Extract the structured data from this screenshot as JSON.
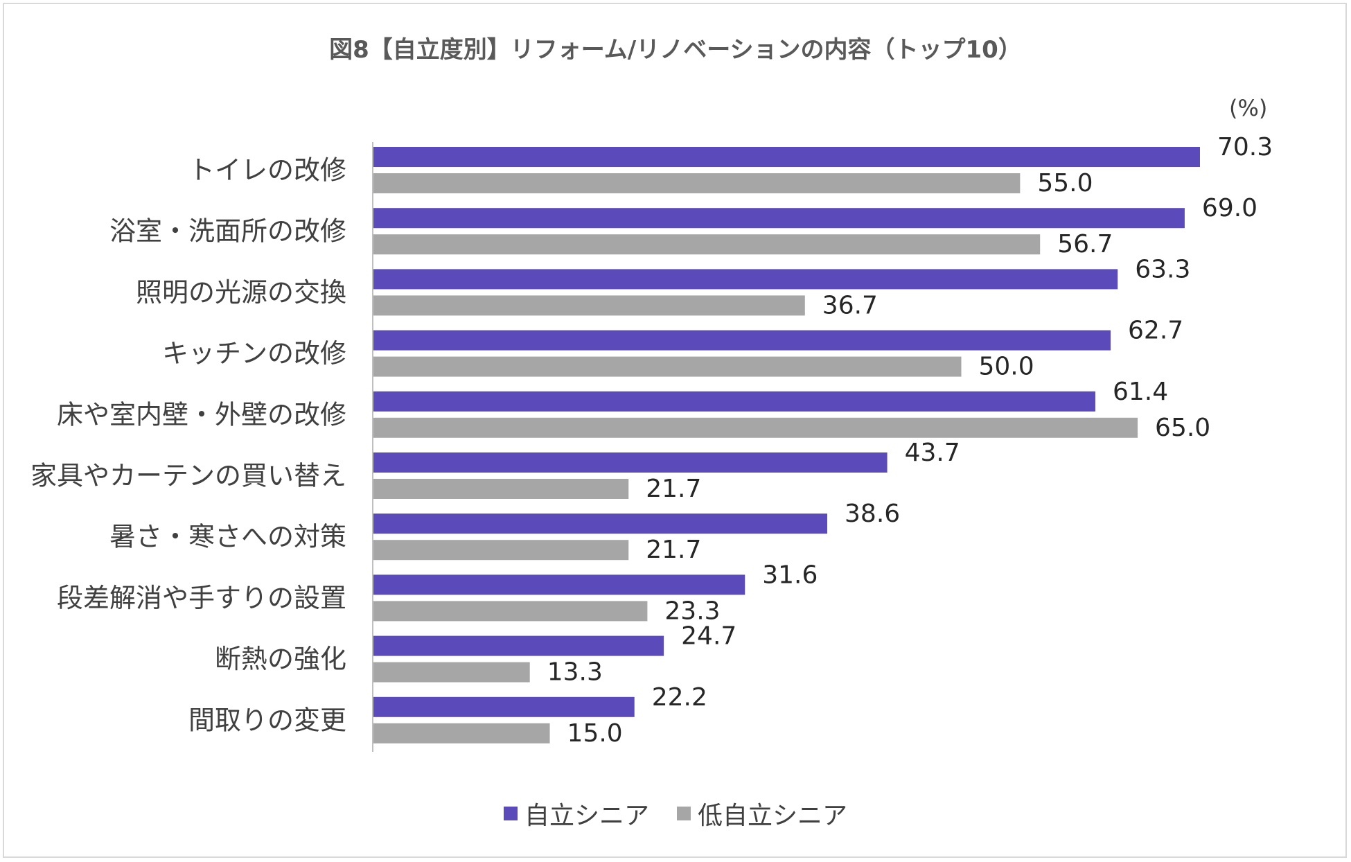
{
  "chart_data": {
    "type": "bar",
    "orientation": "horizontal",
    "title": "図8【自立度別】リフォーム/リノベーションの内容（トップ10）",
    "unit_label": "(%)",
    "categories": [
      "トイレの改修",
      "浴室・洗面所の改修",
      "照明の光源の交換",
      "キッチンの改修",
      "床や室内壁・外壁の改修",
      "家具やカーテンの買い替え",
      "暑さ・寒さへの対策",
      "段差解消や手すりの設置",
      "断熱の強化",
      "間取りの変更"
    ],
    "series": [
      {
        "name": "自立シニア",
        "color": "#5b4bba",
        "values": [
          70.3,
          69.0,
          63.3,
          62.7,
          61.4,
          43.7,
          38.6,
          31.6,
          24.7,
          22.2
        ],
        "labels": [
          "70.3",
          "69.0",
          "63.3",
          "62.7",
          "61.4",
          "43.7",
          "38.6",
          "31.6",
          "24.7",
          "22.2"
        ]
      },
      {
        "name": "低自立シニア",
        "color": "#a6a6a6",
        "values": [
          55.0,
          56.7,
          36.7,
          50.0,
          65.0,
          21.7,
          21.7,
          23.3,
          13.3,
          15.0
        ],
        "labels": [
          "55.0",
          "56.7",
          "36.7",
          "50.0",
          "65.0",
          "21.7",
          "21.7",
          "23.3",
          "13.3",
          "15.0"
        ]
      }
    ],
    "xlim": [
      0,
      100
    ],
    "grid": false,
    "legend_position": "bottom"
  }
}
